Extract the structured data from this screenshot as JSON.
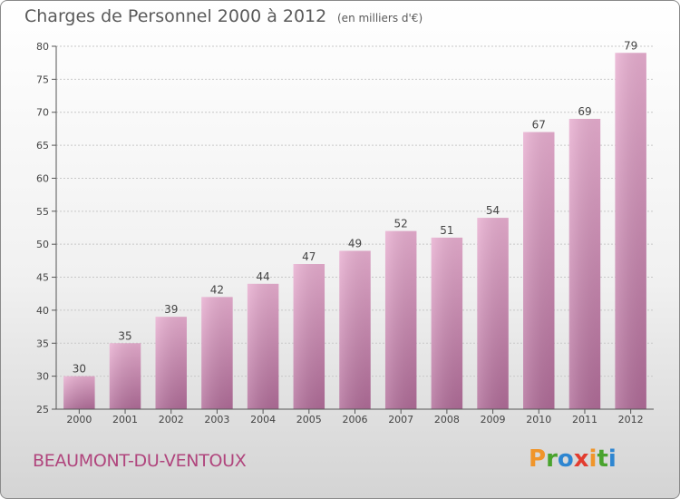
{
  "title": "Charges de Personnel 2000 à 2012",
  "subtitle": "(en milliers d'€)",
  "commune": "BEAUMONT-DU-VENTOUX",
  "logo": {
    "text": "Proxiti",
    "letters": [
      {
        "char": "P",
        "color": "#f0952a"
      },
      {
        "char": "r",
        "color": "#49a32d"
      },
      {
        "char": "o",
        "color": "#2e86d1"
      },
      {
        "char": "x",
        "color": "#e23c2f"
      },
      {
        "char": "i",
        "color": "#f0952a"
      },
      {
        "char": "t",
        "color": "#49a32d"
      },
      {
        "char": "i",
        "color": "#2e86d1"
      }
    ]
  },
  "colors": {
    "bar_top": "#e8aed0",
    "bar_bottom": "#b06c98",
    "axis": "#555555",
    "grid": "#c8c8c8",
    "text": "#444444",
    "commune": "#b0457d"
  },
  "chart_data": {
    "type": "bar",
    "title": "Charges de Personnel 2000 à 2012",
    "subtitle": "(en milliers d'€)",
    "categories": [
      "2000",
      "2001",
      "2002",
      "2003",
      "2004",
      "2005",
      "2006",
      "2007",
      "2008",
      "2009",
      "2010",
      "2011",
      "2012"
    ],
    "values": [
      30,
      35,
      39,
      42,
      44,
      47,
      49,
      52,
      51,
      54,
      67,
      69,
      79
    ],
    "ylim": [
      25,
      80
    ],
    "yticks": [
      25,
      30,
      35,
      40,
      45,
      50,
      55,
      60,
      65,
      70,
      75,
      80
    ],
    "grid": true,
    "data_labels": true
  }
}
